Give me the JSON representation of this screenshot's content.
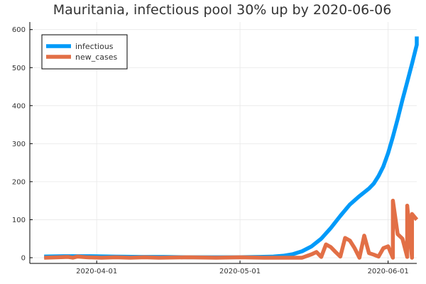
{
  "chart_data": {
    "type": "line",
    "title": "Mauritania, infectious pool 30% up by 2020-06-06",
    "xlabel": "",
    "ylabel": "",
    "x_axis_type": "date",
    "x_range": [
      "2020-03-18",
      "2020-06-07"
    ],
    "ylim": [
      -15,
      620
    ],
    "grid": true,
    "legend_position": "top-left",
    "x_ticks": [
      {
        "date": "2020-04-01",
        "label": "2020-04-01"
      },
      {
        "date": "2020-05-01",
        "label": "2020-05-01"
      },
      {
        "date": "2020-06-01",
        "label": "2020-06-01"
      }
    ],
    "y_ticks": [
      0,
      100,
      200,
      300,
      400,
      500,
      600
    ],
    "series": [
      {
        "name": "infectious",
        "color": "#009af9",
        "points": [
          [
            "2020-03-21",
            3
          ],
          [
            "2020-03-25",
            4
          ],
          [
            "2020-03-30",
            4
          ],
          [
            "2020-04-04",
            3
          ],
          [
            "2020-04-10",
            2
          ],
          [
            "2020-04-15",
            2
          ],
          [
            "2020-04-20",
            1
          ],
          [
            "2020-04-25",
            1
          ],
          [
            "2020-04-30",
            1
          ],
          [
            "2020-05-05",
            2
          ],
          [
            "2020-05-08",
            3
          ],
          [
            "2020-05-10",
            5
          ],
          [
            "2020-05-12",
            9
          ],
          [
            "2020-05-14",
            17
          ],
          [
            "2020-05-16",
            30
          ],
          [
            "2020-05-18",
            50
          ],
          [
            "2020-05-20",
            78
          ],
          [
            "2020-05-22",
            110
          ],
          [
            "2020-05-24",
            140
          ],
          [
            "2020-05-26",
            162
          ],
          [
            "2020-05-28",
            182
          ],
          [
            "2020-05-29",
            195
          ],
          [
            "2020-05-30",
            215
          ],
          [
            "2020-05-31",
            240
          ],
          [
            "2020-06-01",
            275
          ],
          [
            "2020-06-02",
            318
          ],
          [
            "2020-06-03",
            365
          ],
          [
            "2020-06-04",
            415
          ],
          [
            "2020-06-05",
            462
          ],
          [
            "2020-06-06",
            510
          ],
          [
            "2020-06-07",
            560
          ],
          [
            "2020-06-07",
            582
          ]
        ]
      },
      {
        "name": "new_cases",
        "color": "#e26f46",
        "points": [
          [
            "2020-03-21",
            0
          ],
          [
            "2020-03-24",
            1
          ],
          [
            "2020-03-26",
            2
          ],
          [
            "2020-03-27",
            0
          ],
          [
            "2020-03-28",
            3
          ],
          [
            "2020-03-30",
            1
          ],
          [
            "2020-04-02",
            0
          ],
          [
            "2020-04-05",
            1
          ],
          [
            "2020-04-08",
            0
          ],
          [
            "2020-04-11",
            1
          ],
          [
            "2020-04-14",
            0
          ],
          [
            "2020-04-20",
            1
          ],
          [
            "2020-04-26",
            0
          ],
          [
            "2020-05-01",
            1
          ],
          [
            "2020-05-06",
            0
          ],
          [
            "2020-05-10",
            0
          ],
          [
            "2020-05-12",
            0
          ],
          [
            "2020-05-14",
            0
          ],
          [
            "2020-05-16",
            9
          ],
          [
            "2020-05-17",
            15
          ],
          [
            "2020-05-18",
            2
          ],
          [
            "2020-05-19",
            35
          ],
          [
            "2020-05-20",
            28
          ],
          [
            "2020-05-21",
            15
          ],
          [
            "2020-05-22",
            3
          ],
          [
            "2020-05-23",
            52
          ],
          [
            "2020-05-24",
            45
          ],
          [
            "2020-05-25",
            25
          ],
          [
            "2020-05-26",
            0
          ],
          [
            "2020-05-27",
            58
          ],
          [
            "2020-05-28",
            12
          ],
          [
            "2020-05-29",
            8
          ],
          [
            "2020-05-30",
            3
          ],
          [
            "2020-05-31",
            25
          ],
          [
            "2020-06-01",
            30
          ],
          [
            "2020-06-02",
            0
          ],
          [
            "2020-06-02",
            150
          ],
          [
            "2020-06-03",
            62
          ],
          [
            "2020-06-04",
            50
          ],
          [
            "2020-06-05",
            2
          ],
          [
            "2020-06-05",
            137
          ],
          [
            "2020-06-06",
            0
          ],
          [
            "2020-06-06",
            115
          ],
          [
            "2020-06-07",
            100
          ]
        ]
      }
    ]
  }
}
